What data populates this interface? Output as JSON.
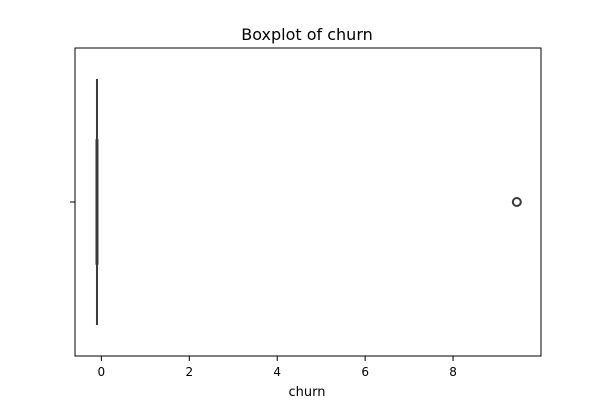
{
  "chart_data": {
    "type": "boxplot",
    "title": "Boxplot of churn",
    "xlabel": "churn",
    "ylabel": "",
    "xlim": [
      -0.6,
      10.0
    ],
    "xticks": [
      0,
      2,
      4,
      6,
      8
    ],
    "grid": false,
    "box": {
      "whisker_low": -0.1,
      "q1": -0.1,
      "median": -0.1,
      "q3": -0.1,
      "whisker_high": -0.1
    },
    "outliers": [
      9.45
    ]
  }
}
